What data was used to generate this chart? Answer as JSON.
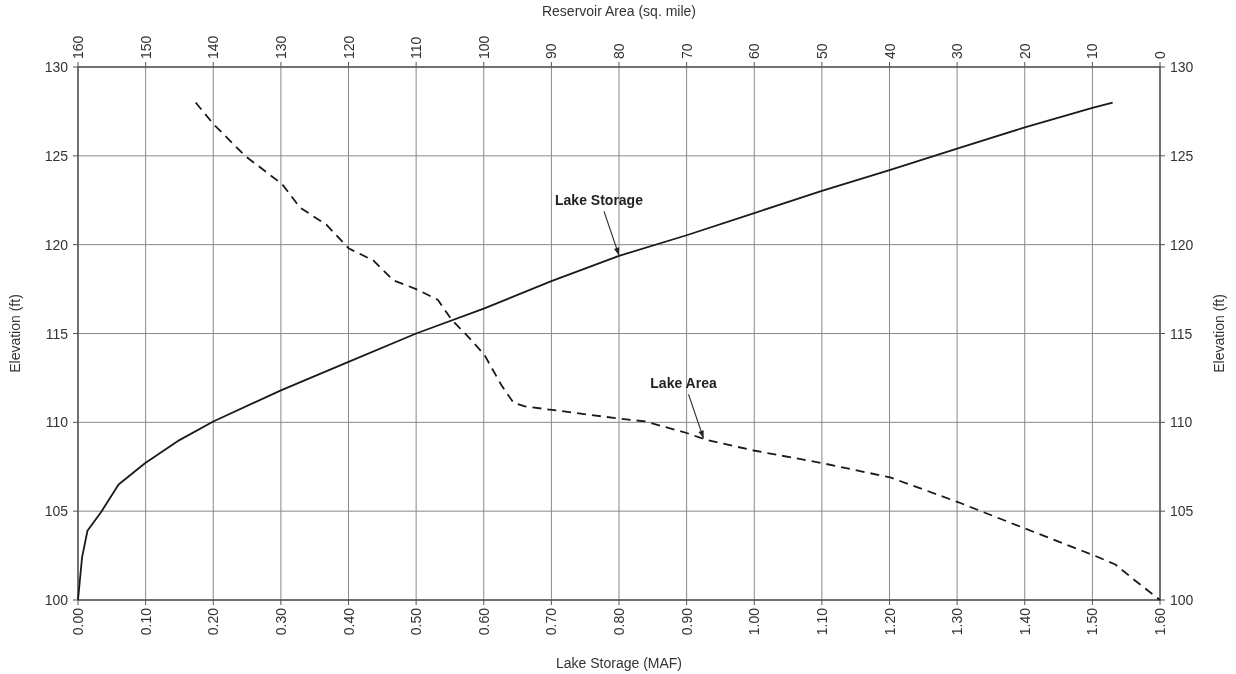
{
  "chart_data": {
    "type": "line",
    "xlabel": "Lake Storage (MAF)",
    "ylabel": "Elevation (ft)",
    "y2label": "Elevation (ft)",
    "x2label": "Reservoir Area (sq. mile)",
    "xlim": [
      0,
      1.6
    ],
    "xticks": [
      {
        "value": 0,
        "label": "0.00"
      },
      {
        "value": 0.1,
        "label": "0.10"
      },
      {
        "value": 0.2,
        "label": "0.20"
      },
      {
        "value": 0.3,
        "label": "0.30"
      },
      {
        "value": 0.4,
        "label": "0.40"
      },
      {
        "value": 0.5,
        "label": "0.50"
      },
      {
        "value": 0.6,
        "label": "0.60"
      },
      {
        "value": 0.7,
        "label": "0.70"
      },
      {
        "value": 0.8,
        "label": "0.80"
      },
      {
        "value": 0.9,
        "label": "0.90"
      },
      {
        "value": 1.0,
        "label": "1.00"
      },
      {
        "value": 1.1,
        "label": "1.10"
      },
      {
        "value": 1.2,
        "label": "1.20"
      },
      {
        "value": 1.3,
        "label": "1.30"
      },
      {
        "value": 1.4,
        "label": "1.40"
      },
      {
        "value": 1.5,
        "label": "1.50"
      },
      {
        "value": 1.6,
        "label": "1.60"
      }
    ],
    "x2lim": [
      160,
      0
    ],
    "x2ticks": [
      160,
      150,
      140,
      130,
      120,
      110,
      100,
      90,
      80,
      70,
      60,
      50,
      40,
      30,
      20,
      10,
      0
    ],
    "ylim": [
      100,
      130
    ],
    "yticks": [
      100,
      105,
      110,
      115,
      120,
      125,
      130
    ],
    "y2lim": [
      100,
      130
    ],
    "y2ticks": [
      100,
      105,
      110,
      115,
      120,
      125,
      130
    ],
    "grid": true,
    "series": [
      {
        "color": "#1a1a1a",
        "line_style": "solid",
        "x": [
          0,
          0.006,
          0.014,
          0.035,
          0.06,
          0.099,
          0.15,
          0.2,
          0.3,
          0.4,
          0.5,
          0.6,
          0.7,
          0.8,
          0.9,
          1.0,
          1.1,
          1.2,
          1.3,
          1.4,
          1.5,
          1.53
        ],
        "values": [
          100,
          102.4,
          103.9,
          105,
          106.5,
          107.7,
          109,
          110.05,
          111.8,
          113.4,
          115,
          116.4,
          117.95,
          119.37,
          120.53,
          121.78,
          123.03,
          124.2,
          125.4,
          126.6,
          127.7,
          128
        ]
      },
      {
        "color": "#1a1a1a",
        "line_style": "dashed",
        "axis": "x2",
        "x": [
          142.6,
          140,
          135.3,
          129.8,
          127.2,
          123.2,
          120,
          116.3,
          113.4,
          110,
          106.8,
          104.8,
          102.5,
          99.9,
          97.4,
          95.6,
          93.9,
          89.9,
          79.8,
          76.1,
          70,
          67,
          59.9,
          49.9,
          39.9,
          29.8,
          19.8,
          9.7,
          6.6,
          3.7,
          0
        ],
        "values": [
          128,
          126.8,
          125,
          123.4,
          122.1,
          121.1,
          119.8,
          119.1,
          118,
          117.5,
          116.9,
          115.8,
          114.9,
          113.8,
          112.1,
          111.1,
          110.9,
          110.7,
          110.2,
          110.05,
          109.4,
          109,
          108.4,
          107.7,
          106.9,
          105.5,
          104,
          102.5,
          102,
          101.1,
          100
        ]
      }
    ],
    "annotations": [
      {
        "text": "Lake Storage",
        "x": 0.8,
        "y": 119.4
      },
      {
        "text": "Lake Area",
        "x": 0.925,
        "y": 109.1
      }
    ]
  }
}
